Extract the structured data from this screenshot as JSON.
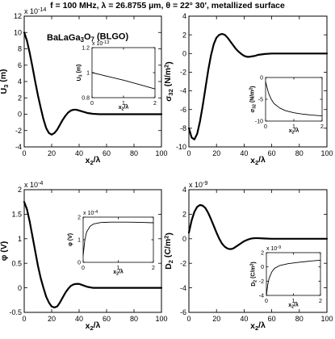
{
  "header": {
    "title": "f = 100 MHz,    λ = 26.8755 µm,    θ = 22° 30',    metallized surface"
  },
  "chart_data": [
    {
      "type": "line",
      "id": "u3",
      "ylabel": "U3 (m)",
      "xlabel": "x2/λ",
      "exponent": "x 10",
      "exponent_power": "-14",
      "annotation": "BaLaGa3O7 (BLGO)",
      "xlim": [
        0,
        100
      ],
      "ylim": [
        -4,
        12
      ],
      "xticks": [
        0,
        20,
        40,
        60,
        80,
        100
      ],
      "yticks": [
        -4,
        -2,
        0,
        2,
        4,
        6,
        8,
        10,
        12
      ],
      "x": [
        0,
        2,
        4,
        6,
        8,
        10,
        12,
        14,
        16,
        18,
        20,
        22,
        24,
        26,
        28,
        30,
        32,
        34,
        36,
        38,
        40,
        42,
        44,
        46,
        48,
        50,
        55,
        60,
        65,
        70,
        75,
        80,
        85,
        90,
        95,
        100
      ],
      "y": [
        10.0,
        9.0,
        7.5,
        5.8,
        4.0,
        2.3,
        0.8,
        -0.6,
        -1.7,
        -2.3,
        -2.5,
        -2.3,
        -1.9,
        -1.3,
        -0.7,
        -0.2,
        0.2,
        0.45,
        0.55,
        0.55,
        0.45,
        0.35,
        0.25,
        0.15,
        0.1,
        0.05,
        0.0,
        0.0,
        0.0,
        0.0,
        0.0,
        0.0,
        0.0,
        0.0,
        0.0,
        0.0
      ],
      "inset": {
        "ylabel": "U3 (m)",
        "xlabel": "x2/λ",
        "exponent": "x 10",
        "exponent_power": "-13",
        "xlim": [
          0,
          2
        ],
        "ylim": [
          0.8,
          1.2
        ],
        "xticks": [
          0,
          1,
          2
        ],
        "yticks": [
          0.8,
          1,
          1.2
        ],
        "x": [
          0,
          0.5,
          1,
          1.5,
          2
        ],
        "y": [
          1.0,
          0.97,
          0.94,
          0.905,
          0.87
        ]
      }
    },
    {
      "type": "line",
      "id": "sigma32",
      "ylabel": "σ32 (N/m²)",
      "xlabel": "x2/λ",
      "exponent": "",
      "exponent_power": "",
      "annotation": "",
      "xlim": [
        0,
        100
      ],
      "ylim": [
        -10,
        4
      ],
      "xticks": [
        0,
        20,
        40,
        60,
        80,
        100
      ],
      "yticks": [
        -10,
        -8,
        -6,
        -4,
        -2,
        0,
        2,
        4
      ],
      "x": [
        0,
        2,
        4,
        6,
        8,
        10,
        12,
        14,
        16,
        18,
        20,
        22,
        24,
        26,
        28,
        30,
        32,
        34,
        36,
        38,
        40,
        42,
        44,
        46,
        48,
        50,
        55,
        60,
        65,
        70,
        75,
        80,
        85,
        90,
        95,
        100
      ],
      "y": [
        -8.0,
        -9.0,
        -9.2,
        -8.6,
        -7.3,
        -5.6,
        -3.7,
        -1.8,
        -0.2,
        1.0,
        1.7,
        2.0,
        2.1,
        2.0,
        1.7,
        1.3,
        0.9,
        0.5,
        0.2,
        -0.05,
        -0.25,
        -0.35,
        -0.35,
        -0.3,
        -0.25,
        -0.15,
        -0.05,
        0.0,
        0.0,
        0.0,
        0.0,
        0.0,
        0.0,
        0.0,
        0.0,
        0.0
      ],
      "inset": {
        "ylabel": "σ32 (N/m²)",
        "xlabel": "x2/λ",
        "exponent": "",
        "exponent_power": "",
        "xlim": [
          0,
          2
        ],
        "ylim": [
          -10,
          0
        ],
        "xticks": [
          0,
          1,
          2
        ],
        "yticks": [
          -10,
          -5,
          0
        ],
        "x": [
          0,
          0.1,
          0.2,
          0.3,
          0.5,
          0.7,
          1.0,
          1.3,
          1.6,
          2.0
        ],
        "y": [
          -1.0,
          -3.5,
          -5.0,
          -6.0,
          -7.0,
          -7.6,
          -8.1,
          -8.4,
          -8.6,
          -8.8
        ]
      }
    },
    {
      "type": "line",
      "id": "phi",
      "ylabel": "φ (V)",
      "xlabel": "x2/λ",
      "exponent": "x 10",
      "exponent_power": "-4",
      "annotation": "",
      "xlim": [
        0,
        100
      ],
      "ylim": [
        -0.5,
        2
      ],
      "xticks": [
        0,
        20,
        40,
        60,
        80,
        100
      ],
      "yticks": [
        -0.5,
        0,
        0.5,
        1,
        1.5,
        2
      ],
      "x": [
        0,
        2,
        4,
        6,
        8,
        10,
        12,
        14,
        16,
        18,
        20,
        22,
        24,
        26,
        28,
        30,
        32,
        34,
        36,
        38,
        40,
        42,
        44,
        46,
        48,
        50,
        55,
        60,
        65,
        70,
        75,
        80,
        85,
        90,
        95,
        100
      ],
      "y": [
        1.75,
        1.6,
        1.35,
        1.05,
        0.75,
        0.45,
        0.2,
        0.0,
        -0.18,
        -0.3,
        -0.38,
        -0.4,
        -0.38,
        -0.3,
        -0.2,
        -0.1,
        -0.02,
        0.04,
        0.07,
        0.08,
        0.08,
        0.06,
        0.04,
        0.02,
        0.01,
        0.0,
        0.0,
        0.0,
        0.0,
        0.0,
        0.0,
        0.0,
        0.0,
        0.0,
        0.0,
        0.0
      ],
      "inset": {
        "ylabel": "φ (V)",
        "xlabel": "x2/λ",
        "exponent": "x 10",
        "exponent_power": "-4",
        "xlim": [
          0,
          2
        ],
        "ylim": [
          0,
          2
        ],
        "xticks": [
          0,
          1,
          2
        ],
        "yticks": [
          0,
          1,
          2
        ],
        "x": [
          0,
          0.05,
          0.1,
          0.2,
          0.3,
          0.5,
          0.8,
          1.2,
          1.6,
          2.0
        ],
        "y": [
          0.3,
          1.0,
          1.35,
          1.6,
          1.7,
          1.76,
          1.78,
          1.78,
          1.77,
          1.75
        ]
      }
    },
    {
      "type": "line",
      "id": "d2",
      "ylabel": "D2 (C/m²)",
      "xlabel": "x2/λ",
      "exponent": "x 10",
      "exponent_power": "-9",
      "annotation": "",
      "xlim": [
        0,
        100
      ],
      "ylim": [
        -6,
        4
      ],
      "xticks": [
        0,
        20,
        40,
        60,
        80,
        100
      ],
      "yticks": [
        -6,
        -4,
        -2,
        0,
        2,
        4
      ],
      "x": [
        0,
        2,
        4,
        6,
        8,
        10,
        12,
        14,
        16,
        18,
        20,
        22,
        24,
        26,
        28,
        30,
        32,
        34,
        36,
        38,
        40,
        42,
        44,
        46,
        48,
        50,
        55,
        60,
        65,
        70,
        75,
        80,
        85,
        90,
        95,
        100
      ],
      "y": [
        0.5,
        1.5,
        2.2,
        2.6,
        2.75,
        2.7,
        2.5,
        2.1,
        1.6,
        1.05,
        0.5,
        0.0,
        -0.4,
        -0.65,
        -0.8,
        -0.85,
        -0.8,
        -0.65,
        -0.5,
        -0.35,
        -0.2,
        -0.1,
        -0.02,
        0.03,
        0.05,
        0.05,
        0.02,
        0.0,
        0.0,
        0.0,
        0.0,
        0.0,
        0.0,
        0.0,
        0.0,
        0.0
      ],
      "inset": {
        "ylabel": "D2 (C/m²)",
        "xlabel": "x2/λ",
        "exponent": "x 10",
        "exponent_power": "-9",
        "xlim": [
          0,
          2
        ],
        "ylim": [
          -4,
          2
        ],
        "xticks": [
          0,
          1,
          2
        ],
        "yticks": [
          -4,
          -2,
          0,
          2
        ],
        "x": [
          0,
          0.05,
          0.1,
          0.2,
          0.3,
          0.5,
          0.8,
          1.2,
          1.6,
          2.0
        ],
        "y": [
          -4.0,
          -2.5,
          -1.6,
          -0.7,
          -0.2,
          0.2,
          0.45,
          0.65,
          0.8,
          0.95
        ]
      }
    }
  ]
}
